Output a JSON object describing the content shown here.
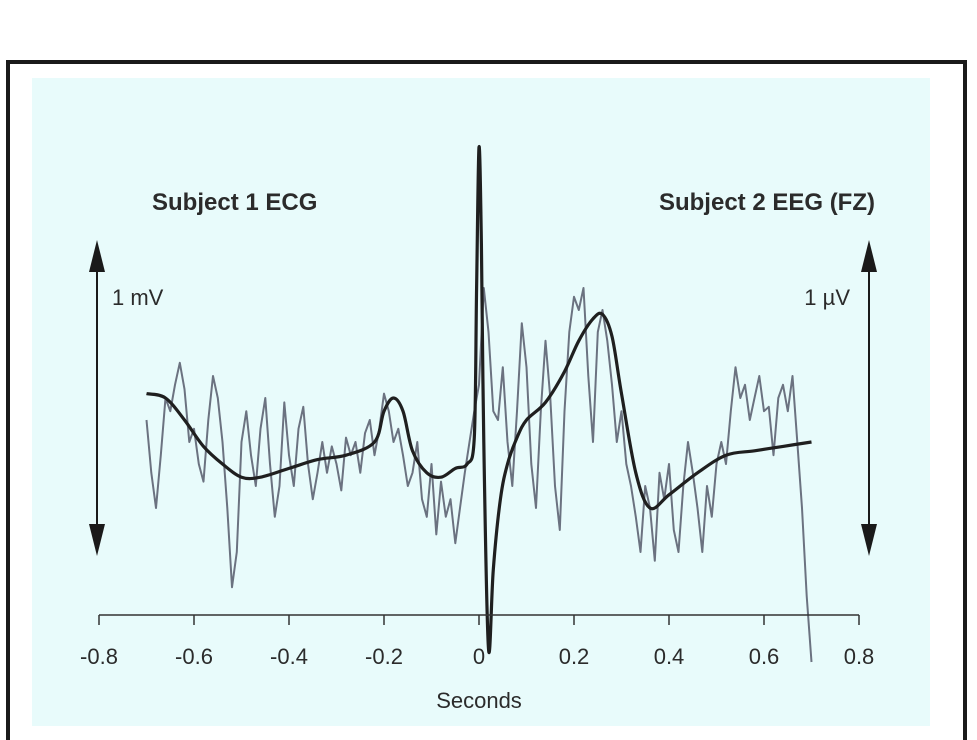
{
  "colors": {
    "panel_bg": "#e8fbfb",
    "frame": "#1a1a1a",
    "ecg_line": "#1f1f1f",
    "eeg_line": "#6b7280",
    "text": "#2b2b2b"
  },
  "chart_data": {
    "type": "line",
    "title": "",
    "xlabel": "Seconds",
    "ylabel": "",
    "xlim": [
      -0.8,
      0.8
    ],
    "x_ticks": [
      "-0.8",
      "-0.6",
      "-0.4",
      "-0.2",
      "0",
      "0.2",
      "0.4",
      "0.6",
      "0.8"
    ],
    "grid": false,
    "annotations": {
      "left_label": "Subject 1 ECG",
      "right_label": "Subject 2 EEG (FZ)",
      "left_scale": "1 mV",
      "right_scale": "1 µV"
    },
    "series": [
      {
        "name": "Subject 1 ECG",
        "x": [
          -0.7,
          -0.66,
          -0.62,
          -0.58,
          -0.54,
          -0.5,
          -0.46,
          -0.4,
          -0.34,
          -0.28,
          -0.22,
          -0.2,
          -0.18,
          -0.16,
          -0.14,
          -0.11,
          -0.08,
          -0.05,
          -0.025,
          -0.01,
          -0.005,
          0.0,
          0.005,
          0.01,
          0.02,
          0.03,
          0.045,
          0.06,
          0.08,
          0.1,
          0.14,
          0.18,
          0.21,
          0.24,
          0.26,
          0.28,
          0.3,
          0.33,
          0.36,
          0.4,
          0.46,
          0.52,
          0.58,
          0.64,
          0.7
        ],
        "y": [
          0.06,
          0.05,
          0.0,
          -0.06,
          -0.1,
          -0.13,
          -0.13,
          -0.11,
          -0.09,
          -0.08,
          -0.05,
          0.02,
          0.05,
          0.02,
          -0.07,
          -0.12,
          -0.13,
          -0.11,
          -0.1,
          -0.04,
          0.3,
          0.62,
          0.4,
          -0.05,
          -0.52,
          -0.34,
          -0.18,
          -0.1,
          -0.04,
          0.0,
          0.04,
          0.11,
          0.18,
          0.23,
          0.24,
          0.19,
          0.06,
          -0.12,
          -0.2,
          -0.17,
          -0.12,
          -0.08,
          -0.07,
          -0.06,
          -0.05
        ]
      },
      {
        "name": "Subject 2 EEG (FZ)",
        "x": [
          -0.7,
          -0.69,
          -0.68,
          -0.67,
          -0.66,
          -0.65,
          -0.64,
          -0.63,
          -0.62,
          -0.61,
          -0.6,
          -0.59,
          -0.58,
          -0.57,
          -0.56,
          -0.55,
          -0.54,
          -0.53,
          -0.52,
          -0.51,
          -0.5,
          -0.49,
          -0.48,
          -0.47,
          -0.46,
          -0.45,
          -0.44,
          -0.43,
          -0.42,
          -0.41,
          -0.4,
          -0.39,
          -0.38,
          -0.37,
          -0.36,
          -0.35,
          -0.34,
          -0.33,
          -0.32,
          -0.31,
          -0.3,
          -0.29,
          -0.28,
          -0.27,
          -0.26,
          -0.25,
          -0.24,
          -0.23,
          -0.22,
          -0.21,
          -0.2,
          -0.19,
          -0.18,
          -0.17,
          -0.16,
          -0.15,
          -0.14,
          -0.13,
          -0.12,
          -0.11,
          -0.1,
          -0.09,
          -0.08,
          -0.07,
          -0.06,
          -0.05,
          -0.04,
          -0.03,
          -0.02,
          -0.01,
          0.0,
          0.01,
          0.02,
          0.03,
          0.04,
          0.05,
          0.06,
          0.07,
          0.08,
          0.09,
          0.1,
          0.11,
          0.12,
          0.13,
          0.14,
          0.15,
          0.16,
          0.17,
          0.18,
          0.19,
          0.2,
          0.21,
          0.22,
          0.23,
          0.24,
          0.25,
          0.26,
          0.27,
          0.28,
          0.29,
          0.3,
          0.31,
          0.32,
          0.33,
          0.34,
          0.35,
          0.36,
          0.37,
          0.38,
          0.39,
          0.4,
          0.41,
          0.42,
          0.43,
          0.44,
          0.45,
          0.46,
          0.47,
          0.48,
          0.49,
          0.5,
          0.51,
          0.52,
          0.53,
          0.54,
          0.55,
          0.56,
          0.57,
          0.58,
          0.59,
          0.6,
          0.61,
          0.62,
          0.63,
          0.64,
          0.65,
          0.66,
          0.67,
          0.68,
          0.69,
          0.7
        ],
        "y": [
          0.0,
          -0.12,
          -0.2,
          -0.08,
          0.05,
          0.02,
          0.08,
          0.13,
          0.07,
          -0.05,
          -0.02,
          -0.1,
          -0.14,
          0.0,
          0.1,
          0.05,
          -0.05,
          -0.2,
          -0.38,
          -0.3,
          -0.05,
          0.02,
          -0.08,
          -0.15,
          -0.02,
          0.05,
          -0.1,
          -0.22,
          -0.15,
          0.04,
          -0.08,
          -0.15,
          -0.02,
          0.03,
          -0.1,
          -0.18,
          -0.12,
          -0.05,
          -0.12,
          -0.06,
          -0.1,
          -0.16,
          -0.04,
          -0.08,
          -0.05,
          -0.12,
          -0.03,
          0.0,
          -0.08,
          -0.02,
          0.06,
          0.02,
          -0.05,
          -0.02,
          -0.08,
          -0.15,
          -0.12,
          -0.05,
          -0.18,
          -0.22,
          -0.1,
          -0.26,
          -0.14,
          -0.22,
          -0.18,
          -0.28,
          -0.2,
          -0.12,
          -0.05,
          0.02,
          0.08,
          0.3,
          0.2,
          0.02,
          0.0,
          0.12,
          -0.05,
          -0.15,
          0.02,
          0.22,
          0.12,
          -0.1,
          -0.2,
          0.02,
          0.18,
          0.05,
          -0.15,
          -0.25,
          0.02,
          0.2,
          0.28,
          0.25,
          0.3,
          0.1,
          -0.05,
          0.2,
          0.25,
          0.18,
          0.08,
          -0.05,
          0.02,
          -0.1,
          -0.15,
          -0.22,
          -0.3,
          -0.15,
          -0.2,
          -0.32,
          -0.12,
          -0.18,
          -0.1,
          -0.25,
          -0.3,
          -0.15,
          -0.05,
          -0.12,
          -0.2,
          -0.3,
          -0.15,
          -0.22,
          -0.1,
          -0.05,
          -0.1,
          0.02,
          0.12,
          0.05,
          0.08,
          0.0,
          0.05,
          0.1,
          0.02,
          0.03,
          -0.08,
          0.05,
          0.08,
          0.02,
          0.1,
          -0.05,
          -0.2,
          -0.4,
          -0.55
        ]
      }
    ]
  }
}
